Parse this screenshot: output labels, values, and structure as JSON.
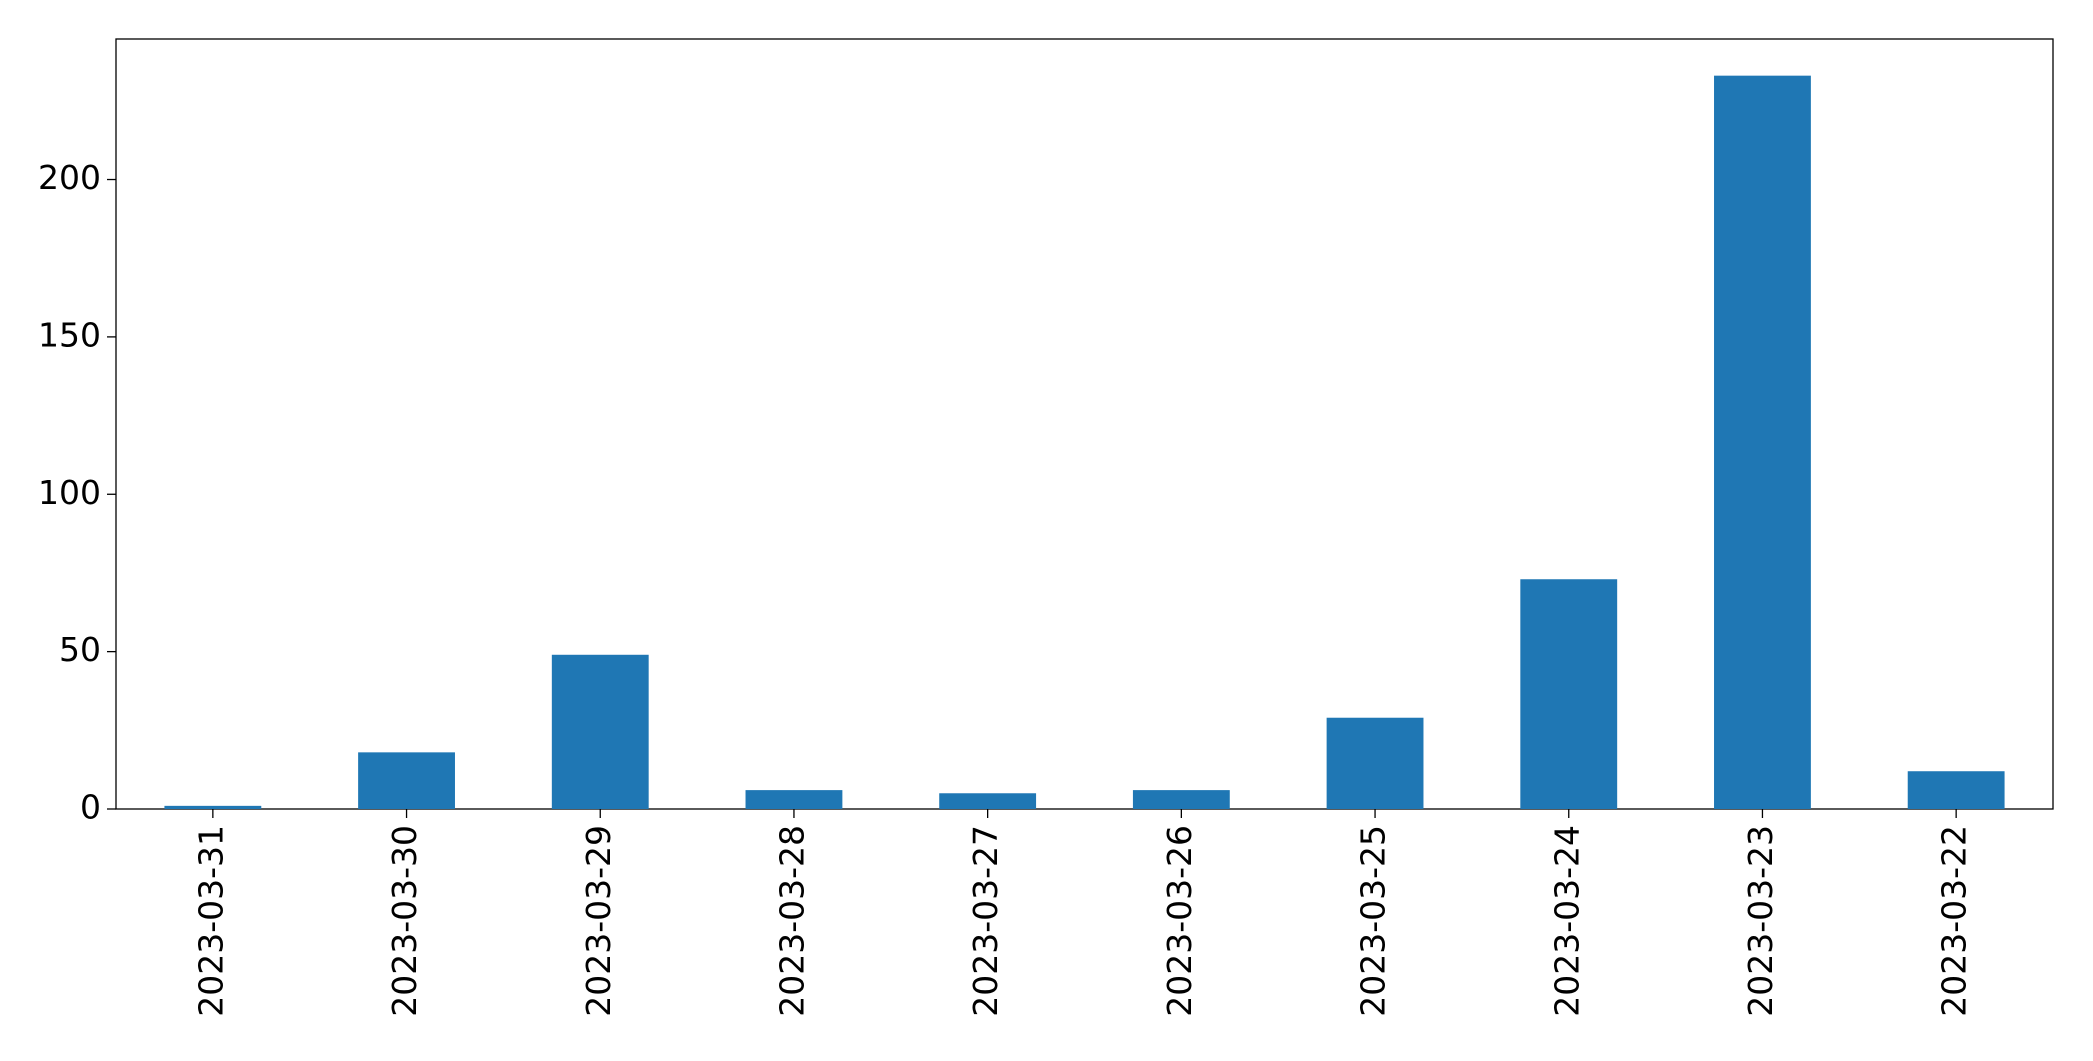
{
  "chart_data": {
    "type": "bar",
    "categories": [
      "2023-03-31",
      "2023-03-30",
      "2023-03-29",
      "2023-03-28",
      "2023-03-27",
      "2023-03-26",
      "2023-03-25",
      "2023-03-24",
      "2023-03-23",
      "2023-03-22"
    ],
    "values": [
      1,
      18,
      49,
      6,
      5,
      6,
      29,
      73,
      233,
      12
    ],
    "color": "#1f77b4",
    "ylim": [
      0,
      244.65
    ],
    "yticks": [
      0,
      50,
      100,
      150,
      200
    ],
    "grid": false
  }
}
